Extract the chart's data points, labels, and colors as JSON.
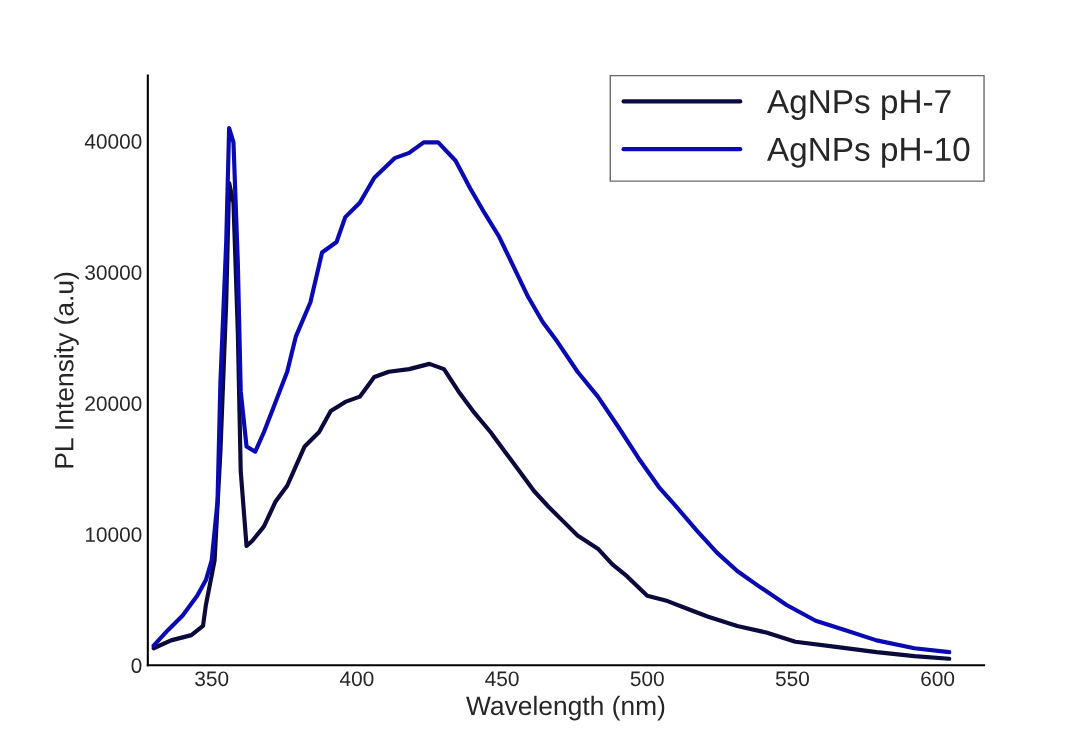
{
  "chart_data": {
    "type": "line",
    "xlabel": "Wavelength (nm)",
    "ylabel": "PL Intensity (a.u)",
    "xlim": [
      328,
      616
    ],
    "ylim": [
      0,
      45000
    ],
    "xticks": [
      350,
      400,
      450,
      500,
      550,
      600
    ],
    "yticks": [
      0,
      10000,
      20000,
      30000,
      40000
    ],
    "grid": false,
    "legend": "top right",
    "line_style": "solid",
    "marker": "none",
    "series": [
      {
        "name": "AgNPs pH-7",
        "color": "#0a0a3c",
        "x": [
          330,
          336,
          343,
          347,
          348,
          351,
          353,
          355,
          356,
          357.5,
          359,
          360,
          362,
          364,
          368,
          372,
          376,
          379,
          382,
          387,
          391,
          396,
          401,
          406,
          411,
          418,
          425,
          430,
          435,
          440,
          446,
          451,
          456,
          461,
          466,
          471,
          476,
          483,
          488,
          493,
          500,
          507,
          514,
          521,
          531,
          541,
          551,
          565,
          579,
          592,
          604
        ],
        "values": [
          1300,
          1900,
          2300,
          3000,
          4600,
          8000,
          16300,
          27700,
          36800,
          35300,
          25400,
          14800,
          9100,
          9500,
          10600,
          12500,
          13700,
          15200,
          16700,
          17800,
          19400,
          20100,
          20500,
          22000,
          22400,
          22600,
          23000,
          22600,
          20900,
          19400,
          17800,
          16300,
          14800,
          13300,
          12100,
          11000,
          9900,
          8900,
          7700,
          6800,
          5300,
          4900,
          4300,
          3700,
          3000,
          2500,
          1800,
          1400,
          1000,
          700,
          500
        ]
      },
      {
        "name": "AgNPs pH-10",
        "color": "#0a0ab4",
        "x": [
          330,
          335,
          340,
          345,
          348,
          350,
          352,
          353,
          355,
          356,
          357.5,
          359,
          360,
          362,
          365,
          368,
          372,
          376,
          379,
          384,
          388,
          393,
          396,
          401,
          406,
          413,
          418,
          423,
          428,
          434,
          439,
          444,
          449,
          454,
          459,
          464,
          469,
          476,
          483,
          490,
          497,
          504,
          510,
          517,
          524,
          531,
          538,
          548,
          558,
          568,
          579,
          592,
          604
        ],
        "values": [
          1500,
          2700,
          3800,
          5300,
          6500,
          8000,
          12500,
          21600,
          32300,
          41000,
          39900,
          30700,
          20900,
          16700,
          16300,
          17800,
          20100,
          22400,
          25100,
          27700,
          31500,
          32300,
          34200,
          35300,
          37200,
          38700,
          39100,
          39900,
          39900,
          38500,
          36400,
          34500,
          32700,
          30400,
          28100,
          26200,
          24700,
          22400,
          20500,
          18200,
          15800,
          13600,
          12100,
          10300,
          8600,
          7200,
          6100,
          4600,
          3400,
          2700,
          1900,
          1300,
          1000
        ]
      }
    ]
  }
}
